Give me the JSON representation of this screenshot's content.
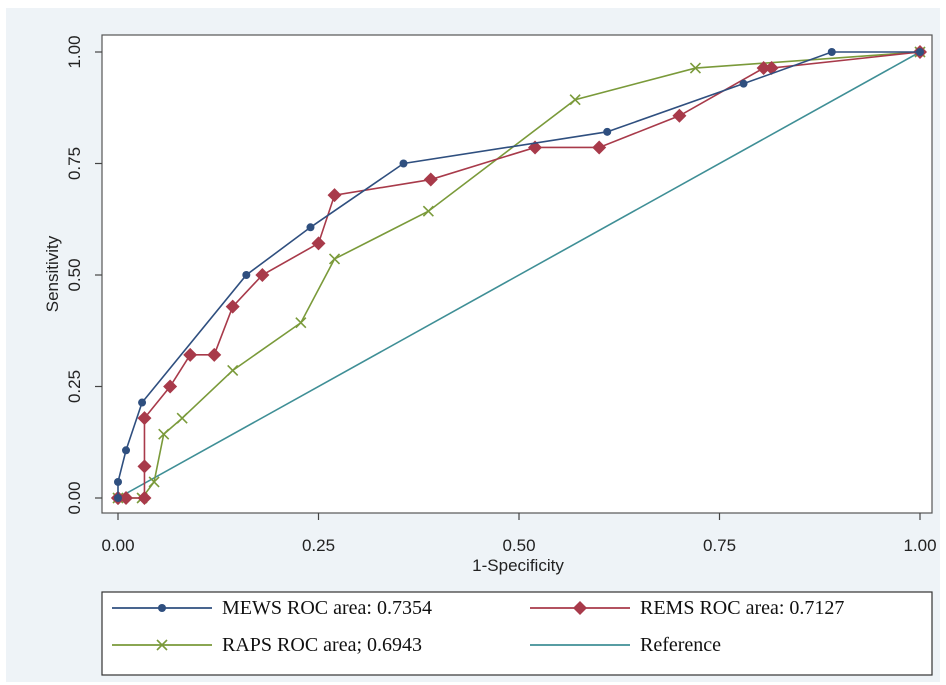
{
  "chart_data": {
    "type": "line",
    "title": "",
    "xlabel": "1-Specificity",
    "ylabel": "Sensitivity",
    "xlim": [
      0,
      1
    ],
    "ylim": [
      0,
      1
    ],
    "xticks": [
      "0.00",
      "0.25",
      "0.50",
      "0.75",
      "1.00"
    ],
    "yticks": [
      "0.00",
      "0.25",
      "0.50",
      "0.75",
      "1.00"
    ],
    "grid": false,
    "legend_position": "bottom",
    "series": [
      {
        "name": "MEWS ROC area: 0.7354",
        "color": "#2f4f7f",
        "marker": "dot",
        "x": [
          0.0,
          0.0,
          0.01,
          0.03,
          0.16,
          0.24,
          0.356,
          0.61,
          0.78,
          0.89,
          1.0
        ],
        "y": [
          0.0,
          0.036,
          0.107,
          0.214,
          0.5,
          0.607,
          0.75,
          0.821,
          0.929,
          1.0,
          1.0
        ]
      },
      {
        "name": "REMS ROC area: 0.7127",
        "color": "#a83a4a",
        "marker": "diamond",
        "x": [
          0.0,
          0.0,
          0.01,
          0.033,
          0.033,
          0.033,
          0.065,
          0.09,
          0.12,
          0.143,
          0.18,
          0.25,
          0.27,
          0.39,
          0.52,
          0.6,
          0.7,
          0.805,
          0.815,
          1.0
        ],
        "y": [
          0.0,
          0.0,
          0.0,
          0.0,
          0.071,
          0.179,
          0.25,
          0.321,
          0.321,
          0.429,
          0.5,
          0.571,
          0.679,
          0.714,
          0.786,
          0.786,
          0.857,
          0.964,
          0.964,
          1.0
        ]
      },
      {
        "name": "RAPS ROC area; 0.6943",
        "color": "#7a9a3a",
        "marker": "x",
        "x": [
          0.0,
          0.03,
          0.045,
          0.057,
          0.08,
          0.143,
          0.228,
          0.27,
          0.387,
          0.57,
          0.72,
          1.0
        ],
        "y": [
          0.0,
          0.0,
          0.036,
          0.143,
          0.179,
          0.286,
          0.393,
          0.536,
          0.643,
          0.893,
          0.964,
          1.0
        ]
      },
      {
        "name": "Reference",
        "color": "#3f8f96",
        "marker": "none",
        "x": [
          0.0,
          1.0
        ],
        "y": [
          0.0,
          1.0
        ]
      }
    ]
  }
}
